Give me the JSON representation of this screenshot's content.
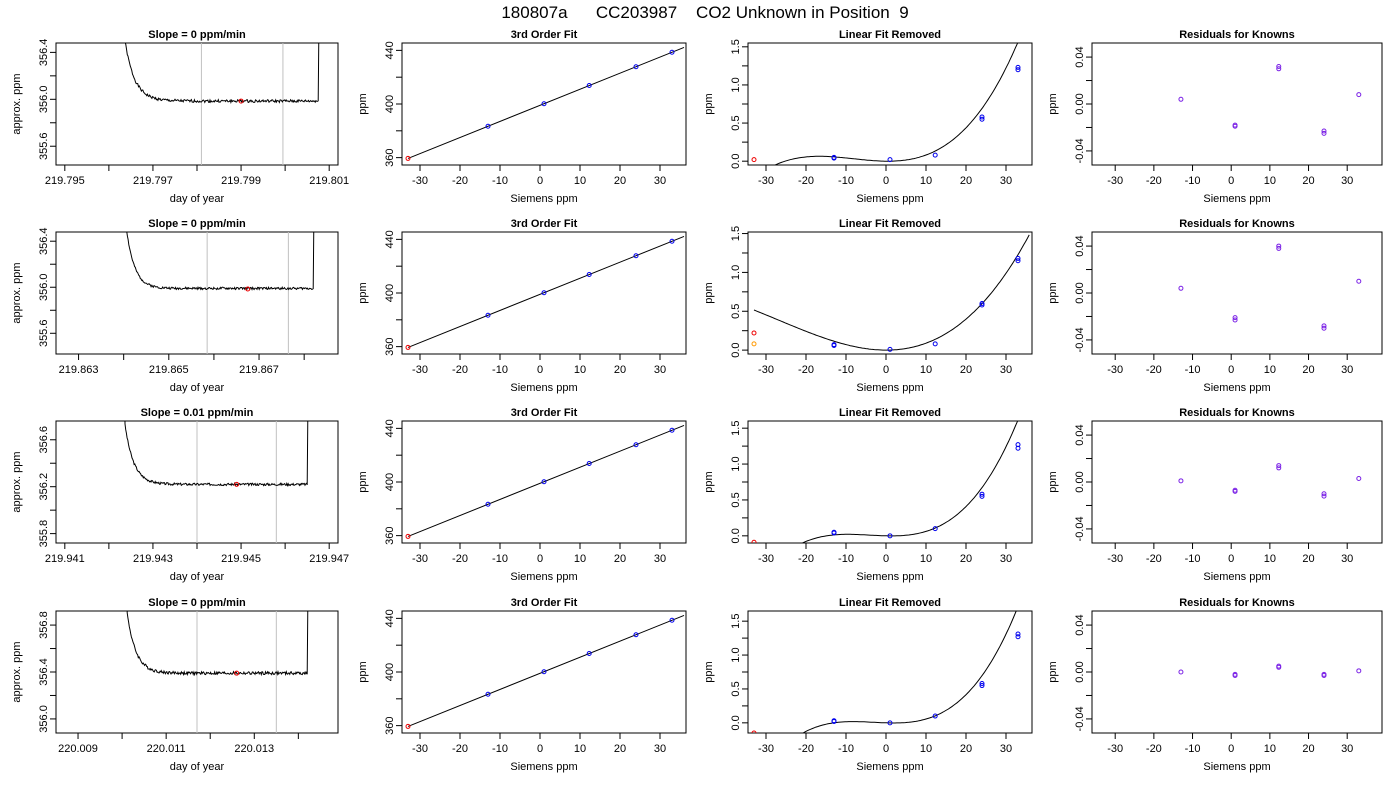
{
  "figure": {
    "title": "180807a      CC203987    CO2 Unknown in Position  9"
  },
  "colors": {
    "known_points": "#0000ee",
    "residual_points": "#7b22e6",
    "highlight_point": "#ee0000",
    "orange_point": "#ff9900",
    "marker_lines": "#c0c0c0",
    "curves": "#000000"
  },
  "chart_data": [
    {
      "panel": "timeseries",
      "row": 1,
      "type": "line",
      "title": "Slope =  0  ppm/min",
      "xlabel": "day of year",
      "ylabel": "approx. ppm",
      "xlim": [
        219.7948,
        219.8012
      ],
      "ylim": [
        355.44,
        356.48
      ],
      "xticks": [
        219.795,
        219.796,
        219.797,
        219.798,
        219.799,
        219.8,
        219.801
      ],
      "xtick_labels": [
        "219.795",
        "",
        "219.797",
        "",
        "219.799",
        "",
        "219.801"
      ],
      "yticks": [
        355.6,
        355.8,
        356.0,
        356.2,
        356.4
      ],
      "ytick_labels": [
        "355.6",
        "",
        "356.0",
        "",
        "356.4"
      ],
      "vlines": [
        219.7981,
        219.79995
      ],
      "highlight": {
        "x": 219.799,
        "y": 355.985
      },
      "curve": {
        "x0": 219.79635,
        "x1": 219.80075,
        "plateau": 355.985,
        "noise": 0.012,
        "decay": 0.00022,
        "amp": 0.55,
        "seed": 1
      }
    },
    {
      "panel": "fit",
      "row": 1,
      "type": "scatter",
      "title": "3rd Order Fit",
      "xlabel": "Siemens ppm",
      "ylabel": "ppm",
      "xlim": [
        -34.5,
        36.5
      ],
      "ylim": [
        354.5,
        445.5
      ],
      "xticks": [
        -30,
        -20,
        -10,
        0,
        10,
        20,
        30
      ],
      "xtick_labels": [
        "-30",
        "-20",
        "-10",
        "0",
        "10",
        "20",
        "30"
      ],
      "yticks": [
        360,
        380,
        400,
        420,
        440
      ],
      "ytick_labels": [
        "360",
        "",
        "400",
        "",
        "440"
      ],
      "line": {
        "a": 399.0,
        "b": 1.2,
        "x0": -33,
        "x1": 36
      },
      "points": [
        [
          -13,
          383.4
        ],
        [
          1,
          400.2
        ],
        [
          12.3,
          413.8
        ],
        [
          24,
          427.8
        ],
        [
          33,
          438.6
        ]
      ],
      "highlight": [
        -33,
        359.4
      ]
    },
    {
      "panel": "linear_removed",
      "row": 1,
      "type": "scatter",
      "title": "Linear Fit Removed",
      "xlabel": "Siemens ppm",
      "ylabel": "ppm",
      "xlim": [
        -34.5,
        36.5
      ],
      "ylim": [
        -0.05,
        1.55
      ],
      "xticks": [
        -30,
        -20,
        -10,
        0,
        10,
        20,
        30
      ],
      "xtick_labels": [
        "-30",
        "-20",
        "-10",
        "0",
        "10",
        "20",
        "30"
      ],
      "yticks": [
        0,
        0.5,
        1.0,
        1.5
      ],
      "ytick_labels": [
        "0.0",
        "0.5",
        "1.0",
        "1.5"
      ],
      "yticks_minor": [
        0.25,
        0.75,
        1.25
      ],
      "cubic": {
        "a": 0.0,
        "b": -0.000617,
        "c": 0.000617,
        "d": 2.54e-05
      },
      "curve_range": [
        -33,
        35.8
      ],
      "points": [
        [
          -13,
          0.04
        ],
        [
          -13,
          0.05
        ],
        [
          1,
          0.02
        ],
        [
          12.3,
          0.08
        ],
        [
          24,
          0.55
        ],
        [
          24,
          0.58
        ],
        [
          33,
          1.2
        ],
        [
          33,
          1.23
        ]
      ],
      "highlight": [
        -33,
        0.02
      ]
    },
    {
      "panel": "residuals",
      "row": 1,
      "type": "scatter",
      "title": "Residuals for Knowns",
      "xlabel": "Siemens ppm",
      "ylabel": "ppm",
      "xlim": [
        -36,
        39
      ],
      "ylim": [
        -0.052,
        0.052
      ],
      "xticks": [
        -30,
        -20,
        -10,
        0,
        10,
        20,
        30
      ],
      "xtick_labels": [
        "-30",
        "-20",
        "-10",
        "0",
        "10",
        "20",
        "30"
      ],
      "yticks": [
        -0.04,
        -0.02,
        0,
        0.02,
        0.04
      ],
      "ytick_labels": [
        "-0.04",
        "",
        "0.00",
        "",
        "0.04"
      ],
      "points": [
        [
          -13,
          0.004
        ],
        [
          1,
          -0.018
        ],
        [
          1,
          -0.019
        ],
        [
          12.3,
          0.032
        ],
        [
          12.3,
          0.03
        ],
        [
          24,
          -0.023
        ],
        [
          24,
          -0.025
        ],
        [
          33,
          0.008
        ]
      ]
    },
    {
      "panel": "timeseries",
      "row": 2,
      "type": "line",
      "title": "Slope =  0  ppm/min",
      "xlabel": "day of year",
      "ylabel": "approx. ppm",
      "xlim": [
        219.8625,
        219.86875
      ],
      "ylim": [
        355.42,
        356.48
      ],
      "xticks": [
        219.863,
        219.864,
        219.865,
        219.866,
        219.867,
        219.868
      ],
      "xtick_labels": [
        "219.863",
        "",
        "219.865",
        "",
        "219.867",
        ""
      ],
      "yticks": [
        355.6,
        355.8,
        356.0,
        356.2,
        356.4
      ],
      "ytick_labels": [
        "355.6",
        "",
        "356.0",
        "",
        "356.4"
      ],
      "vlines": [
        219.86585,
        219.86765
      ],
      "highlight": {
        "x": 219.86675,
        "y": 355.985
      },
      "curve": {
        "x0": 219.86405,
        "x1": 219.8682,
        "plateau": 355.99,
        "noise": 0.01,
        "decay": 0.00018,
        "amp": 0.55,
        "seed": 2
      }
    },
    {
      "panel": "fit",
      "row": 2,
      "type": "scatter",
      "title": "3rd Order Fit",
      "xlabel": "Siemens ppm",
      "ylabel": "ppm",
      "xlim": [
        -34.5,
        36.5
      ],
      "ylim": [
        354.5,
        445.5
      ],
      "xticks": [
        -30,
        -20,
        -10,
        0,
        10,
        20,
        30
      ],
      "xtick_labels": [
        "-30",
        "-20",
        "-10",
        "0",
        "10",
        "20",
        "30"
      ],
      "yticks": [
        360,
        380,
        400,
        420,
        440
      ],
      "ytick_labels": [
        "360",
        "",
        "400",
        "",
        "440"
      ],
      "line": {
        "a": 399.0,
        "b": 1.2,
        "x0": -33,
        "x1": 36
      },
      "points": [
        [
          -13,
          383.4
        ],
        [
          1,
          400.2
        ],
        [
          12.3,
          413.8
        ],
        [
          24,
          427.8
        ],
        [
          33,
          438.6
        ]
      ],
      "highlight": [
        -33,
        359.4
      ]
    },
    {
      "panel": "linear_removed",
      "row": 2,
      "type": "scatter",
      "title": "Linear Fit Removed",
      "xlabel": "Siemens ppm",
      "ylabel": "ppm",
      "xlim": [
        -34.5,
        36.5
      ],
      "ylim": [
        -0.05,
        1.52
      ],
      "xticks": [
        -30,
        -20,
        -10,
        0,
        10,
        20,
        30
      ],
      "xtick_labels": [
        "-30",
        "-20",
        "-10",
        "0",
        "10",
        "20",
        "30"
      ],
      "yticks": [
        0,
        0.5,
        1.0,
        1.5
      ],
      "ytick_labels": [
        "0.0",
        "0.5",
        "1.0",
        "1.5"
      ],
      "yticks_minor": [
        0.25,
        0.75,
        1.25
      ],
      "cubic": {
        "a": 0.0,
        "b": -8.25e-05,
        "c": 0.000801,
        "d": 1e-05
      },
      "curve_range": [
        -33,
        35.8
      ],
      "points": [
        [
          -13,
          0.06
        ],
        [
          -13,
          0.07
        ],
        [
          1,
          0.01
        ],
        [
          12.3,
          0.08
        ],
        [
          24,
          0.58
        ],
        [
          24,
          0.6
        ],
        [
          33,
          1.15
        ],
        [
          33,
          1.18
        ]
      ],
      "highlight": [
        -33,
        0.22
      ],
      "orange": [
        -33,
        0.08
      ]
    },
    {
      "panel": "residuals",
      "row": 2,
      "type": "scatter",
      "title": "Residuals for Knowns",
      "xlabel": "Siemens ppm",
      "ylabel": "ppm",
      "xlim": [
        -36,
        39
      ],
      "ylim": [
        -0.052,
        0.052
      ],
      "xticks": [
        -30,
        -20,
        -10,
        0,
        10,
        20,
        30
      ],
      "xtick_labels": [
        "-30",
        "-20",
        "-10",
        "0",
        "10",
        "20",
        "30"
      ],
      "yticks": [
        -0.04,
        -0.02,
        0,
        0.02,
        0.04
      ],
      "ytick_labels": [
        "-0.04",
        "",
        "0.00",
        "",
        "0.04"
      ],
      "points": [
        [
          -13,
          0.004
        ],
        [
          1,
          -0.021
        ],
        [
          1,
          -0.023
        ],
        [
          12.3,
          0.04
        ],
        [
          12.3,
          0.038
        ],
        [
          24,
          -0.028
        ],
        [
          24,
          -0.03
        ],
        [
          33,
          0.01
        ]
      ]
    },
    {
      "panel": "timeseries",
      "row": 3,
      "type": "line",
      "title": "Slope =  0.01  ppm/min",
      "xlabel": "day of year",
      "ylabel": "approx. ppm",
      "xlim": [
        219.9408,
        219.9472
      ],
      "ylim": [
        355.72,
        356.76
      ],
      "xticks": [
        219.941,
        219.942,
        219.943,
        219.944,
        219.945,
        219.946,
        219.947
      ],
      "xtick_labels": [
        "219.941",
        "",
        "219.943",
        "",
        "219.945",
        "",
        "219.947"
      ],
      "yticks": [
        355.8,
        356.0,
        356.2,
        356.4,
        356.6
      ],
      "ytick_labels": [
        "355.8",
        "",
        "356.2",
        "",
        "356.6"
      ],
      "vlines": [
        219.944,
        219.9458
      ],
      "highlight": {
        "x": 219.9449,
        "y": 356.22
      },
      "curve": {
        "x0": 219.94235,
        "x1": 219.9465,
        "plateau": 356.22,
        "noise": 0.01,
        "decay": 0.0002,
        "amp": 0.55,
        "seed": 3
      }
    },
    {
      "panel": "fit",
      "row": 3,
      "type": "scatter",
      "title": "3rd Order Fit",
      "xlabel": "Siemens ppm",
      "ylabel": "ppm",
      "xlim": [
        -34.5,
        36.5
      ],
      "ylim": [
        354.5,
        445.5
      ],
      "xticks": [
        -30,
        -20,
        -10,
        0,
        10,
        20,
        30
      ],
      "xtick_labels": [
        "-30",
        "-20",
        "-10",
        "0",
        "10",
        "20",
        "30"
      ],
      "yticks": [
        360,
        380,
        400,
        420,
        440
      ],
      "ytick_labels": [
        "360",
        "",
        "400",
        "",
        "440"
      ],
      "line": {
        "a": 399.0,
        "b": 1.2,
        "x0": -33,
        "x1": 36
      },
      "points": [
        [
          -13,
          383.4
        ],
        [
          1,
          400.2
        ],
        [
          12.3,
          413.8
        ],
        [
          24,
          427.8
        ],
        [
          33,
          438.6
        ]
      ],
      "highlight": [
        -33,
        359.4
      ]
    },
    {
      "panel": "linear_removed",
      "row": 3,
      "type": "scatter",
      "title": "Linear Fit Removed",
      "xlabel": "Siemens ppm",
      "ylabel": "ppm",
      "xlim": [
        -34.5,
        36.5
      ],
      "ylim": [
        -0.1,
        1.6
      ],
      "xticks": [
        -30,
        -20,
        -10,
        0,
        10,
        20,
        30
      ],
      "xtick_labels": [
        "-30",
        "-20",
        "-10",
        "0",
        "10",
        "20",
        "30"
      ],
      "yticks": [
        0,
        0.5,
        1.0,
        1.5
      ],
      "ytick_labels": [
        "0.0",
        "0.5",
        "1.0",
        "1.5"
      ],
      "yticks_minor": [
        0.25,
        0.75,
        1.25
      ],
      "cubic": {
        "a": 0.0,
        "b": -0.00132,
        "c": 0.000412,
        "d": 3.37e-05
      },
      "curve_range": [
        -33,
        35.8
      ],
      "points": [
        [
          -13,
          0.04
        ],
        [
          -13,
          0.05
        ],
        [
          1,
          0.0
        ],
        [
          12.3,
          0.1
        ],
        [
          24,
          0.55
        ],
        [
          24,
          0.58
        ],
        [
          33,
          1.22
        ],
        [
          33,
          1.27
        ]
      ],
      "highlight": [
        -33,
        -0.09
      ]
    },
    {
      "panel": "residuals",
      "row": 3,
      "type": "scatter",
      "title": "Residuals for Knowns",
      "xlabel": "Siemens ppm",
      "ylabel": "ppm",
      "xlim": [
        -36,
        39
      ],
      "ylim": [
        -0.052,
        0.052
      ],
      "xticks": [
        -30,
        -20,
        -10,
        0,
        10,
        20,
        30
      ],
      "xtick_labels": [
        "-30",
        "-20",
        "-10",
        "0",
        "10",
        "20",
        "30"
      ],
      "yticks": [
        -0.04,
        -0.02,
        0,
        0.02,
        0.04
      ],
      "ytick_labels": [
        "-0.04",
        "",
        "0.00",
        "",
        "0.04"
      ],
      "points": [
        [
          -13,
          0.001
        ],
        [
          1,
          -0.007
        ],
        [
          1,
          -0.008
        ],
        [
          12.3,
          0.014
        ],
        [
          12.3,
          0.012
        ],
        [
          24,
          -0.01
        ],
        [
          24,
          -0.012
        ],
        [
          33,
          0.003
        ]
      ]
    },
    {
      "panel": "timeseries",
      "row": 4,
      "type": "line",
      "title": "Slope =  0  ppm/min",
      "xlabel": "day of year",
      "ylabel": "approx. ppm",
      "xlim": [
        220.0085,
        220.0149
      ],
      "ylim": [
        355.88,
        356.92
      ],
      "xticks": [
        220.009,
        220.01,
        220.011,
        220.012,
        220.013,
        220.014
      ],
      "xtick_labels": [
        "220.009",
        "",
        "220.011",
        "",
        "220.013",
        ""
      ],
      "yticks": [
        356.0,
        356.2,
        356.4,
        356.6,
        356.8
      ],
      "ytick_labels": [
        "356.0",
        "",
        "356.4",
        "",
        "356.8"
      ],
      "vlines": [
        220.0117,
        220.0135
      ],
      "highlight": {
        "x": 220.0126,
        "y": 356.39
      },
      "curve": {
        "x0": 220.0101,
        "x1": 220.0142,
        "plateau": 356.39,
        "noise": 0.013,
        "decay": 0.0002,
        "amp": 0.55,
        "seed": 4
      }
    },
    {
      "panel": "fit",
      "row": 4,
      "type": "scatter",
      "title": "3rd Order Fit",
      "xlabel": "Siemens ppm",
      "ylabel": "ppm",
      "xlim": [
        -34.5,
        36.5
      ],
      "ylim": [
        354.5,
        445.5
      ],
      "xticks": [
        -30,
        -20,
        -10,
        0,
        10,
        20,
        30
      ],
      "xtick_labels": [
        "-30",
        "-20",
        "-10",
        "0",
        "10",
        "20",
        "30"
      ],
      "yticks": [
        360,
        380,
        400,
        420,
        440
      ],
      "ytick_labels": [
        "360",
        "",
        "400",
        "",
        "440"
      ],
      "line": {
        "a": 399.0,
        "b": 1.2,
        "x0": -33,
        "x1": 36
      },
      "points": [
        [
          -13,
          383.4
        ],
        [
          1,
          400.2
        ],
        [
          12.3,
          413.8
        ],
        [
          24,
          427.8
        ],
        [
          33,
          438.6
        ]
      ],
      "highlight": [
        -33,
        359.4
      ]
    },
    {
      "panel": "linear_removed",
      "row": 4,
      "type": "scatter",
      "title": "Linear Fit Removed",
      "xlabel": "Siemens ppm",
      "ylabel": "ppm",
      "xlim": [
        -34.5,
        36.5
      ],
      "ylim": [
        -0.15,
        1.65
      ],
      "xticks": [
        -30,
        -20,
        -10,
        0,
        10,
        20,
        30
      ],
      "xtick_labels": [
        "-30",
        "-20",
        "-10",
        "0",
        "10",
        "20",
        "30"
      ],
      "yticks": [
        0,
        0.5,
        1.0,
        1.5
      ],
      "ytick_labels": [
        "0.0",
        "0.5",
        "1.0",
        "1.5"
      ],
      "yticks_minor": [
        0.25,
        0.75,
        1.25
      ],
      "cubic": {
        "a": 0.0,
        "b": -0.00186,
        "c": 0.000361,
        "d": 3.85e-05
      },
      "curve_range": [
        -33,
        35.8
      ],
      "points": [
        [
          -13,
          0.02
        ],
        [
          -13,
          0.03
        ],
        [
          1,
          0.0
        ],
        [
          12.3,
          0.1
        ],
        [
          24,
          0.55
        ],
        [
          24,
          0.58
        ],
        [
          33,
          1.27
        ],
        [
          33,
          1.31
        ]
      ],
      "highlight": [
        -33,
        -0.15
      ]
    },
    {
      "panel": "residuals",
      "row": 4,
      "type": "scatter",
      "title": "Residuals for Knowns",
      "xlabel": "Siemens ppm",
      "ylabel": "ppm",
      "xlim": [
        -36,
        39
      ],
      "ylim": [
        -0.052,
        0.052
      ],
      "xticks": [
        -30,
        -20,
        -10,
        0,
        10,
        20,
        30
      ],
      "xtick_labels": [
        "-30",
        "-20",
        "-10",
        "0",
        "10",
        "20",
        "30"
      ],
      "yticks": [
        -0.04,
        -0.02,
        0,
        0.02,
        0.04
      ],
      "ytick_labels": [
        "-0.04",
        "",
        "0.00",
        "",
        "0.04"
      ],
      "points": [
        [
          -13,
          0.0
        ],
        [
          1,
          -0.002
        ],
        [
          1,
          -0.003
        ],
        [
          12.3,
          0.005
        ],
        [
          12.3,
          0.004
        ],
        [
          24,
          -0.002
        ],
        [
          24,
          -0.003
        ],
        [
          33,
          0.001
        ]
      ]
    }
  ]
}
